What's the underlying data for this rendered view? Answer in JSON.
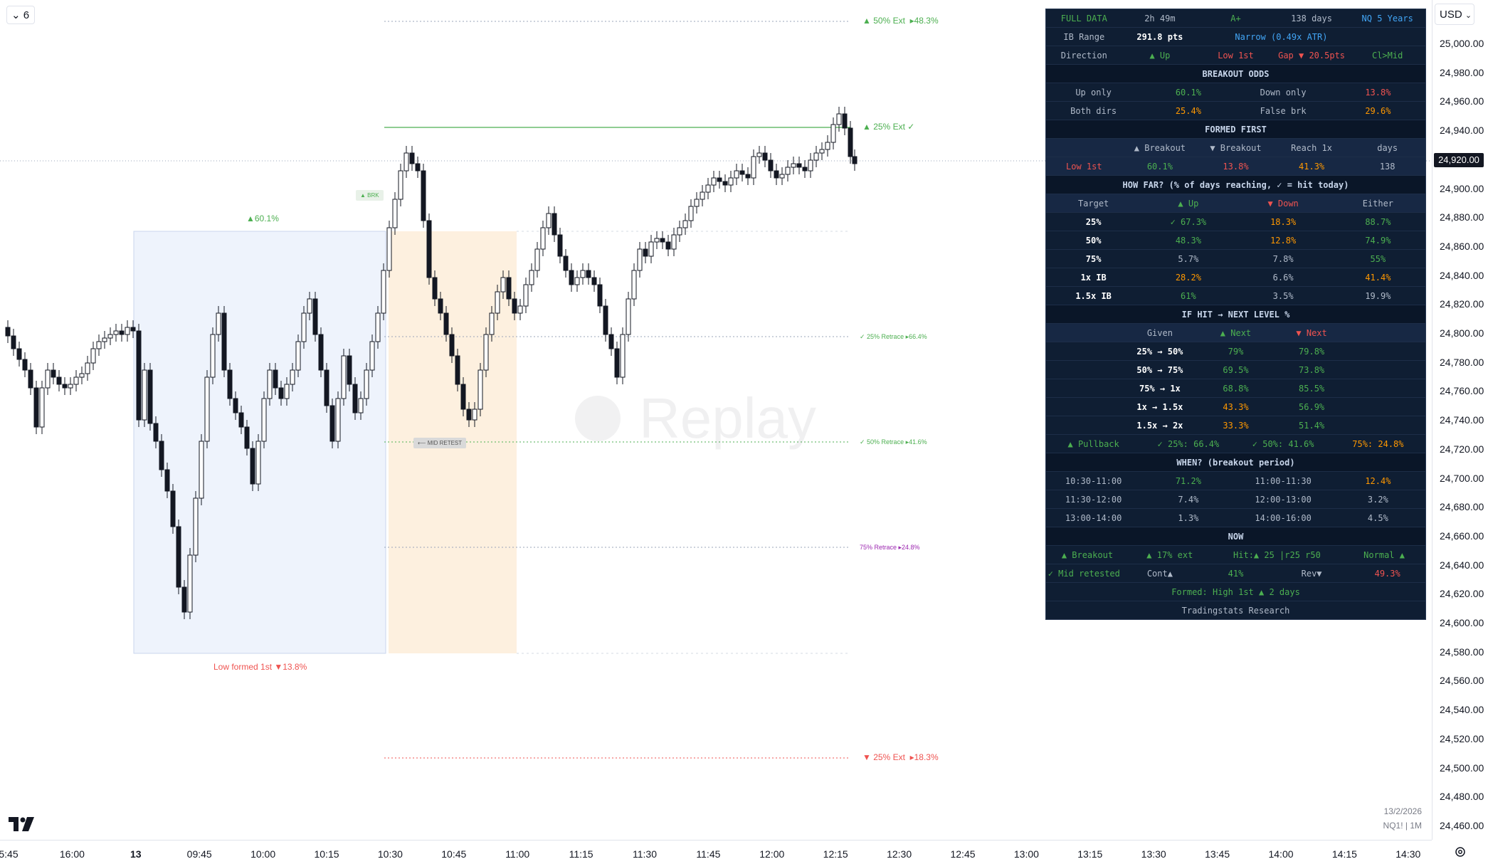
{
  "toolbar": {
    "interval_label": "6",
    "currency": "USD"
  },
  "price_axis": {
    "labels": [
      "25,000.00",
      "24,980.00",
      "24,960.00",
      "24,940.00",
      "24,920.00",
      "24,900.00",
      "24,880.00",
      "24,860.00",
      "24,840.00",
      "24,820.00",
      "24,800.00",
      "24,780.00",
      "24,760.00",
      "24,740.00",
      "24,720.00",
      "24,700.00",
      "24,680.00",
      "24,660.00",
      "24,640.00",
      "24,620.00",
      "24,600.00",
      "24,580.00",
      "24,560.00",
      "24,540.00",
      "24,520.00",
      "24,500.00",
      "24,480.00",
      "24,460.00"
    ],
    "current_price": "24,920.00"
  },
  "time_axis": {
    "labels": [
      "5:45",
      "16:00",
      "13",
      "09:45",
      "10:00",
      "10:15",
      "10:30",
      "10:45",
      "11:00",
      "11:15",
      "11:30",
      "11:45",
      "12:00",
      "12:15",
      "12:30",
      "12:45",
      "13:00",
      "13:15",
      "13:30",
      "13:45",
      "14:00",
      "14:15",
      "14:30"
    ]
  },
  "chart_annotations": {
    "ext50_up": "▲ 50% Ext",
    "ext50_up_pct": "▸48.3%",
    "ext25_up": "▲ 25% Ext ✓",
    "ext25_down": "▼ 25% Ext",
    "ext25_down_pct": "▸18.3%",
    "retrace25": "✓ 25% Retrace ▸66.4%",
    "retrace50": "✓ 50% Retrace ▸41.6%",
    "retrace75": "75% Retrace ▸24.8%",
    "up_odds": "▲60.1%",
    "low_formed": "Low formed 1st  ▼13.8%",
    "brk_tag": "▲ BRK",
    "mid_retest_tag": "⟵ MID RETEST",
    "watermark": "Replay"
  },
  "footer": {
    "date": "13/2/2026",
    "symbol": "NQ1! | 1M"
  },
  "stats": {
    "row1": [
      "FULL DATA",
      "2h 49m",
      "A+",
      "138 days",
      "NQ 5 Years"
    ],
    "row2": [
      "IB Range",
      "291.8 pts",
      "Narrow (0.49x ATR)"
    ],
    "row3": [
      "Direction",
      "▲ Up",
      "Low 1st",
      "Gap ▼ 20.5pts",
      "Cl>Mid"
    ],
    "breakout_title": "BREAKOUT ODDS",
    "row4": [
      "Up only",
      "60.1%",
      "Down only",
      "13.8%"
    ],
    "row5": [
      "Both dirs",
      "25.4%",
      "False brk",
      "29.6%"
    ],
    "formed_title": "FORMED FIRST",
    "row6": [
      "",
      "▲ Breakout",
      "▼ Breakout",
      "Reach 1x",
      "days"
    ],
    "row7": [
      "Low 1st",
      "60.1%",
      "13.8%",
      "41.3%",
      "138"
    ],
    "howfar_title": "HOW FAR? (% of days reaching, ✓ = hit today)",
    "row8": [
      "Target",
      "▲ Up",
      "▼ Down",
      "Either"
    ],
    "howfar_rows": [
      [
        "25%",
        "✓ 67.3%",
        "18.3%",
        "88.7%"
      ],
      [
        "50%",
        "48.3%",
        "12.8%",
        "74.9%"
      ],
      [
        "75%",
        "5.7%",
        "7.8%",
        "55%"
      ],
      [
        "1x IB",
        "28.2%",
        "6.6%",
        "41.4%"
      ],
      [
        "1.5x IB",
        "61%",
        "3.5%",
        "19.9%"
      ]
    ],
    "ifhit_title": "IF HIT → NEXT LEVEL %",
    "row9": [
      "",
      "Given",
      "▲ Next",
      "▼ Next",
      ""
    ],
    "ifhit_rows": [
      [
        "25% → 50%",
        "79%",
        "79.8%"
      ],
      [
        "50% → 75%",
        "69.5%",
        "73.8%"
      ],
      [
        "75% → 1x",
        "68.8%",
        "85.5%"
      ],
      [
        "1x → 1.5x",
        "43.3%",
        "56.9%"
      ],
      [
        "1.5x → 2x",
        "33.3%",
        "51.4%"
      ]
    ],
    "pullback": [
      "▲ Pullback",
      "✓ 25%: 66.4%",
      "✓ 50%: 41.6%",
      "75%: 24.8%"
    ],
    "when_title": "WHEN? (breakout period)",
    "when_rows": [
      [
        "10:30-11:00",
        "71.2%",
        "11:00-11:30",
        "12.4%"
      ],
      [
        "11:30-12:00",
        "7.4%",
        "12:00-13:00",
        "3.2%"
      ],
      [
        "13:00-14:00",
        "1.3%",
        "14:00-16:00",
        "4.5%"
      ]
    ],
    "now_title": "NOW",
    "now1": [
      "▲ Breakout",
      "▲ 17% ext",
      "Hit:▲ 25  |r25 r50",
      "Normal ▲"
    ],
    "now2": [
      "✓ Mid retested",
      "Cont▲",
      "41%",
      "Rev▼",
      "49.3%"
    ],
    "formed_line": "Formed: High 1st ▲ 2 days",
    "brand": "Tradingstats Research"
  },
  "colors": {
    "up": "#4caf50",
    "down": "#ef5350",
    "orange": "#ff9800",
    "blue": "#42a5f5",
    "panel_bg": "#0f1e33",
    "ib_box": "#eef3fc",
    "retest_box": "#fdf0df"
  }
}
